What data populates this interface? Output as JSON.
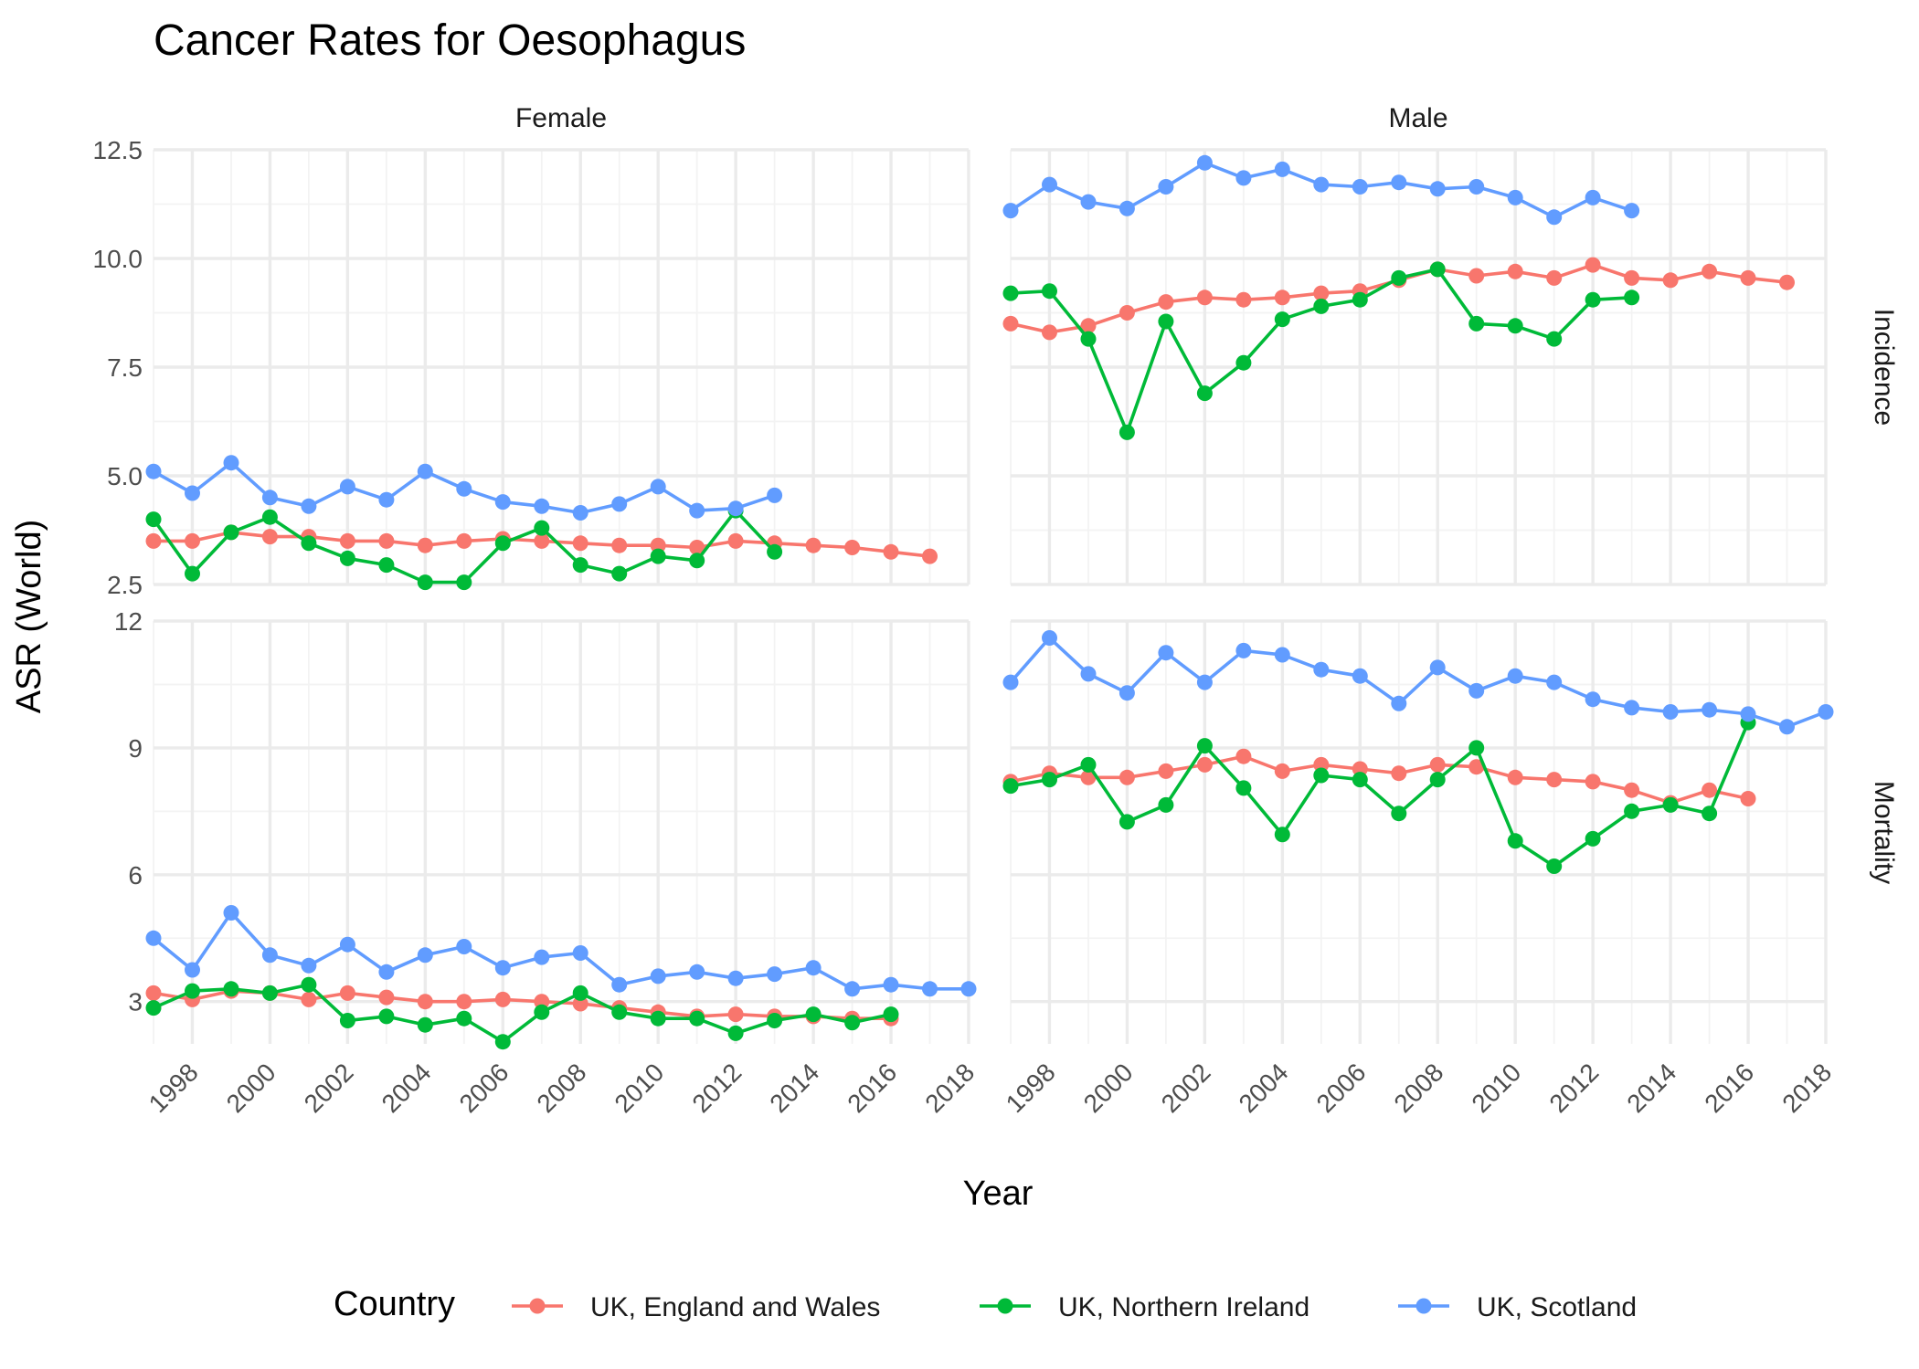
{
  "chart_data": {
    "type": "line",
    "title": "Cancer Rates for Oesophagus",
    "xlabel": "Year",
    "ylabel": "ASR (World)",
    "legend": {
      "title": "Country",
      "position": "bottom"
    },
    "colors": {
      "UK, England and Wales": "#F8766D",
      "UK, Northern Ireland": "#00BA38",
      "UK, Scotland": "#619CFF"
    },
    "grid": true,
    "xlim": [
      1997,
      2018
    ],
    "x_ticks": [
      1998,
      2000,
      2002,
      2004,
      2006,
      2008,
      2010,
      2012,
      2014,
      2016,
      2018
    ],
    "facet_columns": [
      "Female",
      "Male"
    ],
    "facet_rows": [
      "Incidence",
      "Mortality"
    ],
    "rows": [
      {
        "name": "Incidence",
        "ylim": [
          2.5,
          12.5
        ],
        "y_ticks": [
          2.5,
          5.0,
          7.5,
          10.0,
          12.5
        ],
        "y_tick_labels": [
          "2.5",
          "5.0",
          "7.5",
          "10.0",
          "12.5"
        ]
      },
      {
        "name": "Mortality",
        "ylim": [
          2.0,
          12.0
        ],
        "y_ticks": [
          3,
          6,
          9,
          12
        ],
        "y_tick_labels": [
          "3",
          "6",
          "9",
          "12"
        ]
      }
    ],
    "panels": [
      {
        "sex": "Female",
        "measure": "Incidence",
        "series": [
          {
            "name": "UK, England and Wales",
            "x": [
              1997,
              1998,
              1999,
              2000,
              2001,
              2002,
              2003,
              2004,
              2005,
              2006,
              2007,
              2008,
              2009,
              2010,
              2011,
              2012,
              2013,
              2014,
              2015,
              2016,
              2017
            ],
            "y": [
              3.5,
              3.5,
              3.7,
              3.6,
              3.6,
              3.5,
              3.5,
              3.4,
              3.5,
              3.55,
              3.5,
              3.45,
              3.4,
              3.4,
              3.35,
              3.5,
              3.45,
              3.4,
              3.35,
              3.25,
              3.15
            ]
          },
          {
            "name": "UK, Northern Ireland",
            "x": [
              1997,
              1998,
              1999,
              2000,
              2001,
              2002,
              2003,
              2004,
              2005,
              2006,
              2007,
              2008,
              2009,
              2010,
              2011,
              2012,
              2013
            ],
            "y": [
              4.0,
              2.75,
              3.7,
              4.05,
              3.45,
              3.1,
              2.95,
              2.55,
              2.55,
              3.45,
              3.8,
              2.95,
              2.75,
              3.15,
              3.05,
              4.2,
              3.25
            ]
          },
          {
            "name": "UK, Scotland",
            "x": [
              1997,
              1998,
              1999,
              2000,
              2001,
              2002,
              2003,
              2004,
              2005,
              2006,
              2007,
              2008,
              2009,
              2010,
              2011,
              2012,
              2013
            ],
            "y": [
              5.1,
              4.6,
              5.3,
              4.5,
              4.3,
              4.75,
              4.45,
              5.1,
              4.7,
              4.4,
              4.3,
              4.15,
              4.35,
              4.75,
              4.2,
              4.25,
              4.55
            ]
          }
        ]
      },
      {
        "sex": "Male",
        "measure": "Incidence",
        "series": [
          {
            "name": "UK, England and Wales",
            "x": [
              1997,
              1998,
              1999,
              2000,
              2001,
              2002,
              2003,
              2004,
              2005,
              2006,
              2007,
              2008,
              2009,
              2010,
              2011,
              2012,
              2013,
              2014,
              2015,
              2016,
              2017
            ],
            "y": [
              8.5,
              8.3,
              8.45,
              8.75,
              9.0,
              9.1,
              9.05,
              9.1,
              9.2,
              9.25,
              9.5,
              9.75,
              9.6,
              9.7,
              9.55,
              9.85,
              9.55,
              9.5,
              9.7,
              9.55,
              9.45
            ]
          },
          {
            "name": "UK, Northern Ireland",
            "x": [
              1997,
              1998,
              1999,
              2000,
              2001,
              2002,
              2003,
              2004,
              2005,
              2006,
              2007,
              2008,
              2009,
              2010,
              2011,
              2012,
              2013
            ],
            "y": [
              9.2,
              9.25,
              8.15,
              6.0,
              8.55,
              6.9,
              7.6,
              8.6,
              8.9,
              9.05,
              9.55,
              9.75,
              8.5,
              8.45,
              8.15,
              9.05,
              9.1
            ]
          },
          {
            "name": "UK, Scotland",
            "x": [
              1997,
              1998,
              1999,
              2000,
              2001,
              2002,
              2003,
              2004,
              2005,
              2006,
              2007,
              2008,
              2009,
              2010,
              2011,
              2012,
              2013
            ],
            "y": [
              11.1,
              11.7,
              11.3,
              11.15,
              11.65,
              12.2,
              11.85,
              12.05,
              11.7,
              11.65,
              11.75,
              11.6,
              11.65,
              11.4,
              10.95,
              11.4,
              11.1
            ]
          }
        ]
      },
      {
        "sex": "Female",
        "measure": "Mortality",
        "series": [
          {
            "name": "UK, England and Wales",
            "x": [
              1997,
              1998,
              1999,
              2000,
              2001,
              2002,
              2003,
              2004,
              2005,
              2006,
              2007,
              2008,
              2009,
              2010,
              2011,
              2012,
              2013,
              2014,
              2015,
              2016
            ],
            "y": [
              3.2,
              3.05,
              3.25,
              3.2,
              3.05,
              3.2,
              3.1,
              3.0,
              3.0,
              3.05,
              3.0,
              2.95,
              2.85,
              2.75,
              2.65,
              2.7,
              2.65,
              2.65,
              2.6,
              2.6
            ]
          },
          {
            "name": "UK, Northern Ireland",
            "x": [
              1997,
              1998,
              1999,
              2000,
              2001,
              2002,
              2003,
              2004,
              2005,
              2006,
              2007,
              2008,
              2009,
              2010,
              2011,
              2012,
              2013,
              2014,
              2015,
              2016
            ],
            "y": [
              2.85,
              3.25,
              3.3,
              3.2,
              3.4,
              2.55,
              2.65,
              2.45,
              2.6,
              2.05,
              2.75,
              3.2,
              2.75,
              2.6,
              2.6,
              2.25,
              2.55,
              2.7,
              2.5,
              2.7
            ]
          },
          {
            "name": "UK, Scotland",
            "x": [
              1997,
              1998,
              1999,
              2000,
              2001,
              2002,
              2003,
              2004,
              2005,
              2006,
              2007,
              2008,
              2009,
              2010,
              2011,
              2012,
              2013,
              2014,
              2015,
              2016,
              2017,
              2018
            ],
            "y": [
              4.5,
              3.75,
              5.1,
              4.1,
              3.85,
              4.35,
              3.7,
              4.1,
              4.3,
              3.8,
              4.05,
              4.15,
              3.4,
              3.6,
              3.7,
              3.55,
              3.65,
              3.8,
              3.3,
              3.4,
              3.3,
              3.3
            ]
          }
        ]
      },
      {
        "sex": "Male",
        "measure": "Mortality",
        "series": [
          {
            "name": "UK, England and Wales",
            "x": [
              1997,
              1998,
              1999,
              2000,
              2001,
              2002,
              2003,
              2004,
              2005,
              2006,
              2007,
              2008,
              2009,
              2010,
              2011,
              2012,
              2013,
              2014,
              2015,
              2016
            ],
            "y": [
              8.2,
              8.4,
              8.3,
              8.3,
              8.45,
              8.6,
              8.8,
              8.45,
              8.6,
              8.5,
              8.4,
              8.6,
              8.55,
              8.3,
              8.25,
              8.2,
              8.0,
              7.7,
              8.0,
              7.8
            ]
          },
          {
            "name": "UK, Northern Ireland",
            "x": [
              1997,
              1998,
              1999,
              2000,
              2001,
              2002,
              2003,
              2004,
              2005,
              2006,
              2007,
              2008,
              2009,
              2010,
              2011,
              2012,
              2013,
              2014,
              2015,
              2016
            ],
            "y": [
              8.1,
              8.25,
              8.6,
              7.25,
              7.65,
              9.05,
              8.05,
              6.95,
              8.35,
              8.25,
              7.45,
              8.25,
              9.0,
              6.8,
              6.2,
              6.85,
              7.5,
              7.65,
              7.45,
              9.6
            ]
          },
          {
            "name": "UK, Scotland",
            "x": [
              1997,
              1998,
              1999,
              2000,
              2001,
              2002,
              2003,
              2004,
              2005,
              2006,
              2007,
              2008,
              2009,
              2010,
              2011,
              2012,
              2013,
              2014,
              2015,
              2016,
              2017,
              2018
            ],
            "y": [
              10.55,
              11.6,
              10.75,
              10.3,
              11.25,
              10.55,
              11.3,
              11.2,
              10.85,
              10.7,
              10.05,
              10.9,
              10.35,
              10.7,
              10.55,
              10.15,
              9.95,
              9.85,
              9.9,
              9.8,
              9.5,
              9.85
            ]
          }
        ]
      }
    ]
  }
}
